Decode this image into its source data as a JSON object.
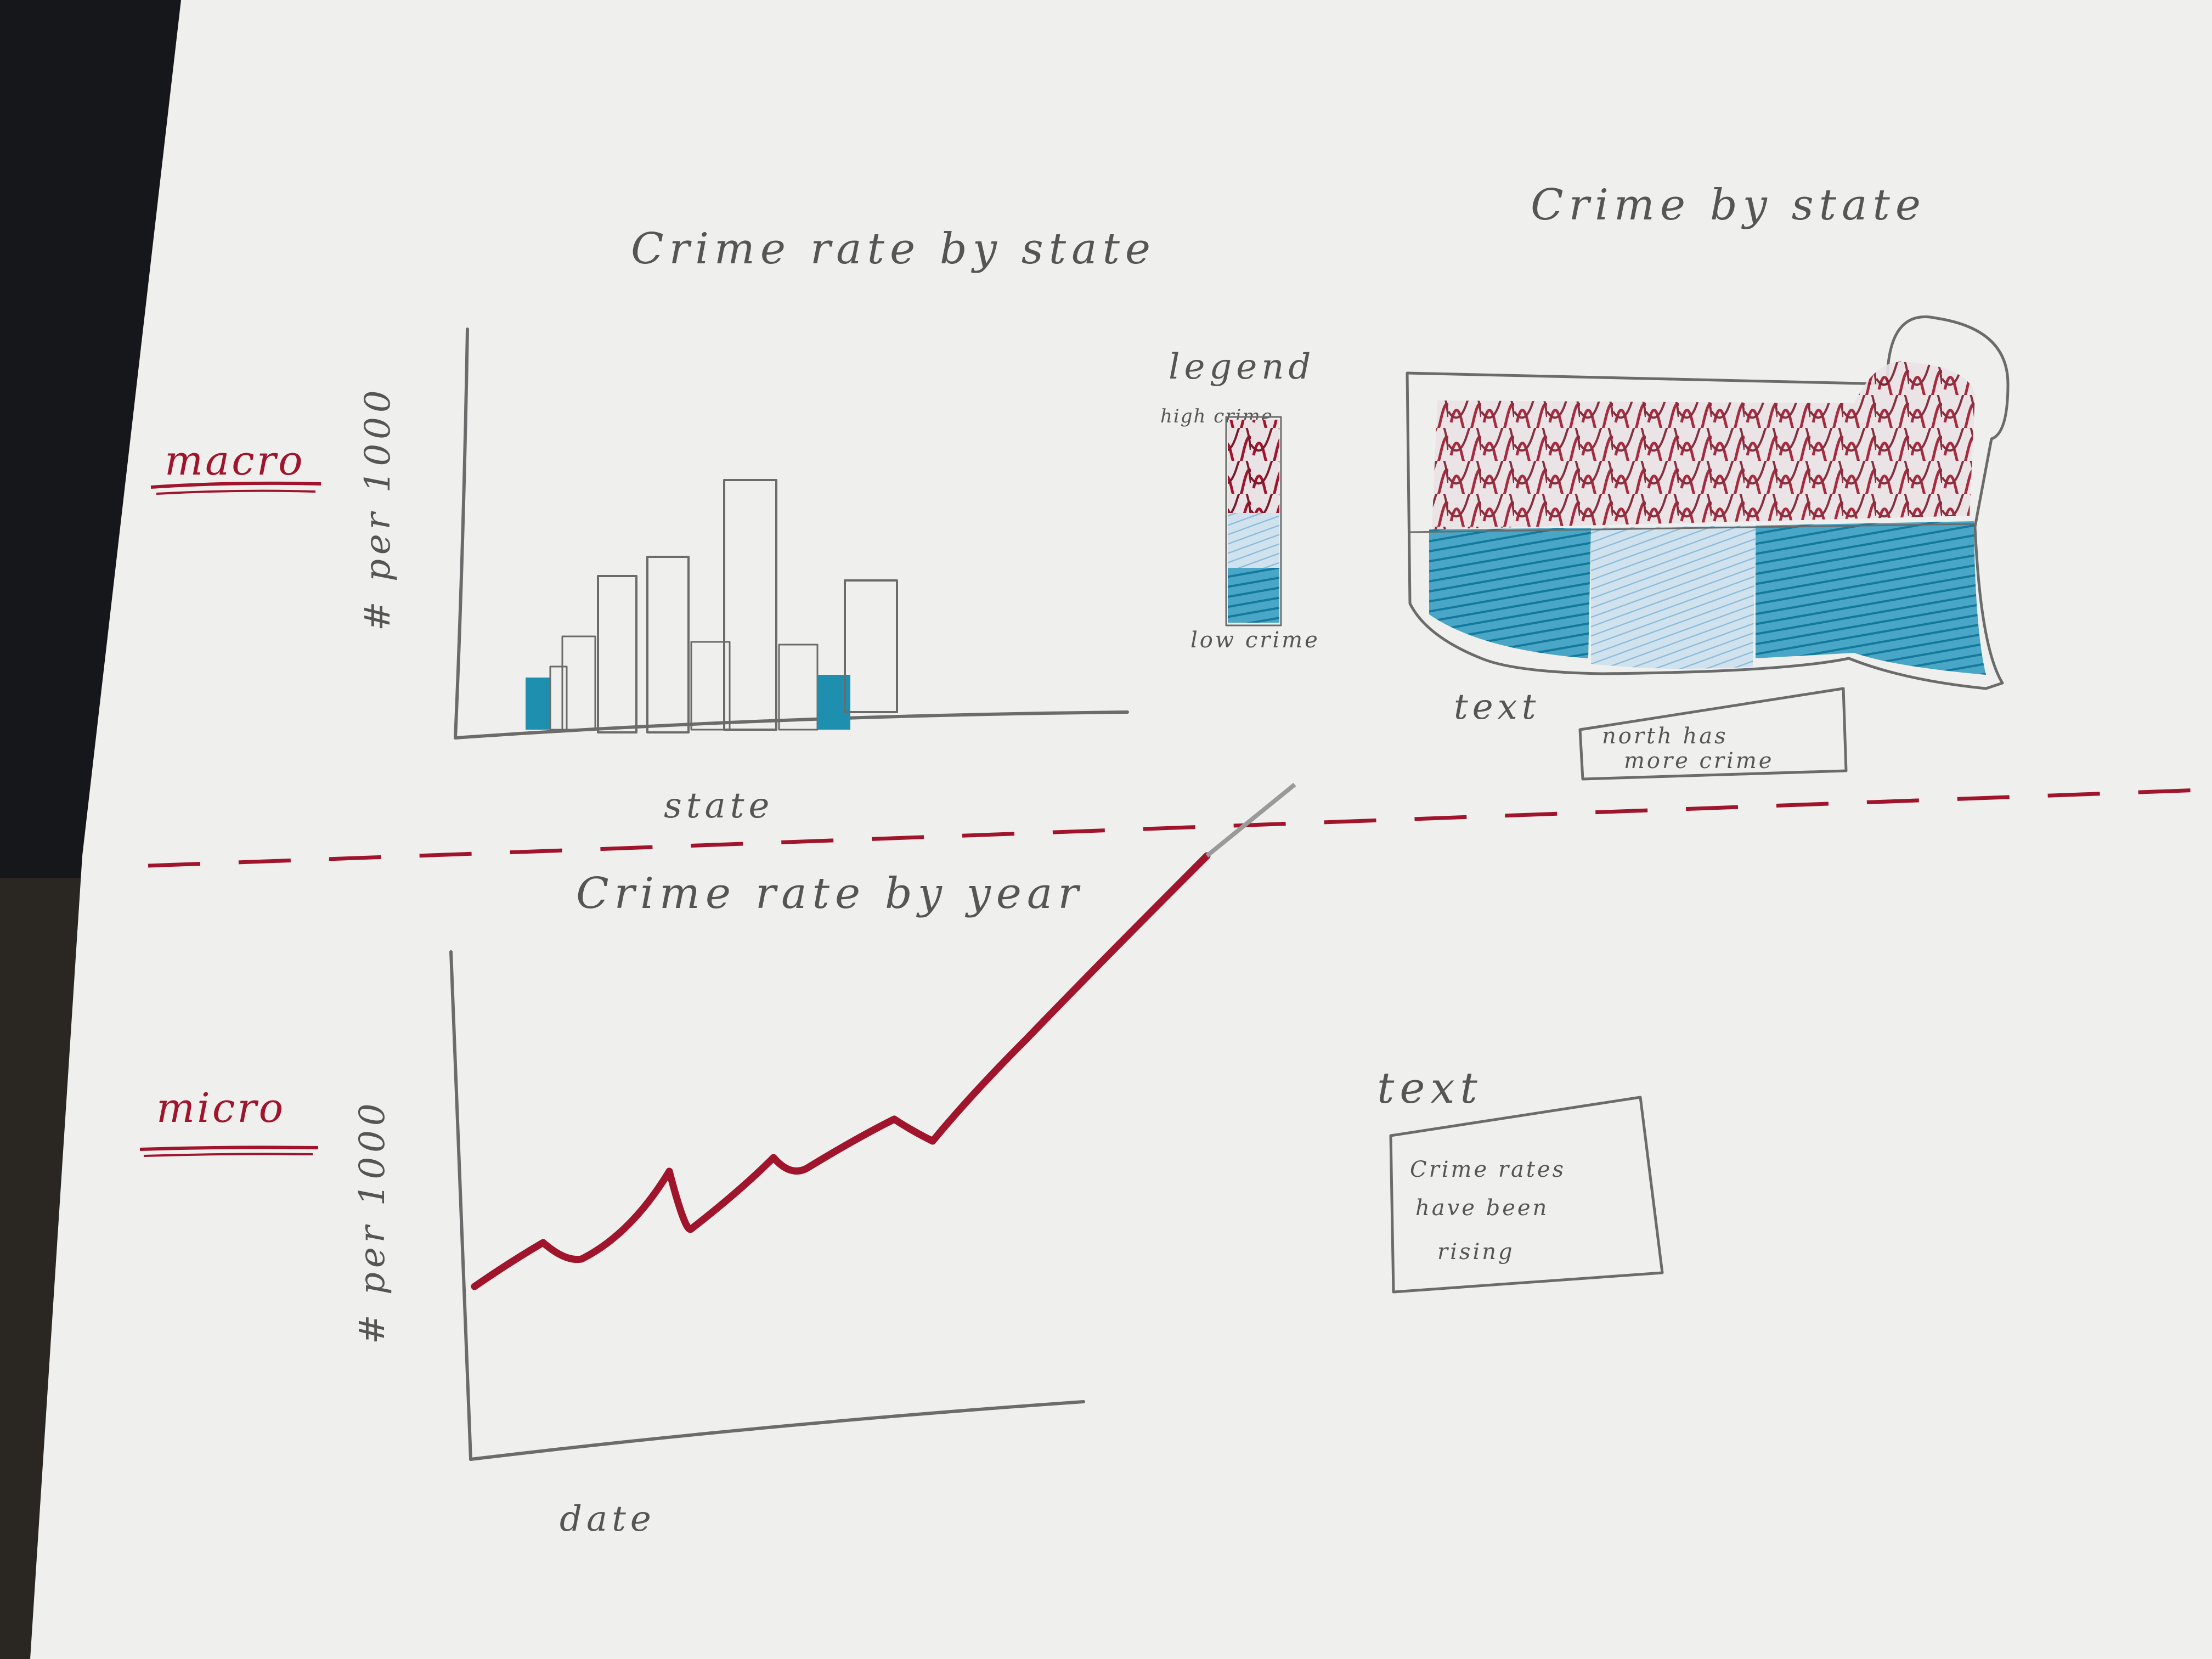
{
  "sections": {
    "top_label": "macro",
    "bottom_label": "micro"
  },
  "bar_sketch": {
    "title": "Crime rate by state",
    "ylabel": "# per 1000",
    "xlabel": "state"
  },
  "legend": {
    "title": "legend",
    "high": "high crime",
    "low": "low crime"
  },
  "map_sketch": {
    "title": "Crime by state",
    "note_heading": "text",
    "note_lines": [
      "north has",
      "more crime"
    ]
  },
  "line_sketch": {
    "title": "Crime rate by year",
    "ylabel": "# per 1000",
    "xlabel": "date"
  },
  "bottom_note": {
    "heading": "text",
    "lines": [
      "Crime rates",
      "have been",
      "rising"
    ]
  },
  "colors": {
    "paper": "#efefed",
    "pencil": "#6b6b6b",
    "red": "#a0142c",
    "teal": "#1f8fb0",
    "light_blue": "#9cc6e0"
  }
}
